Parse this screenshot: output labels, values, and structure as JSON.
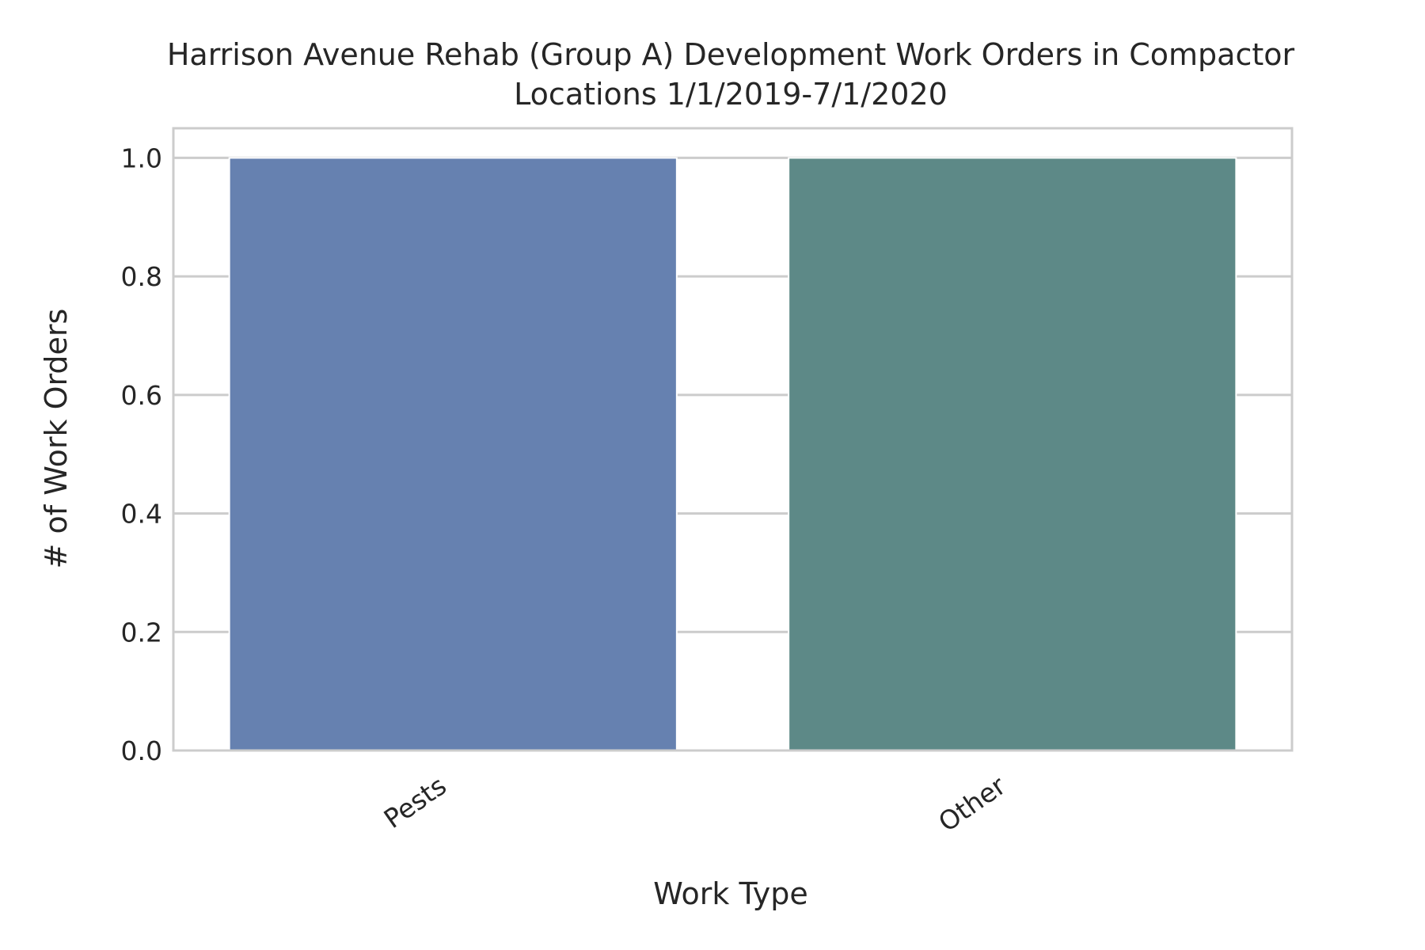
{
  "chart_data": {
    "type": "bar",
    "title_lines": [
      "Harrison Avenue Rehab (Group A) Development Work Orders in Compactor",
      "Locations 1/1/2019-7/1/2020"
    ],
    "xlabel": "Work Type",
    "ylabel": "# of Work Orders",
    "categories": [
      "Pests",
      "Other"
    ],
    "values": [
      1,
      1
    ],
    "colors": [
      "#6681b0",
      "#5d8987"
    ],
    "ylim": [
      0,
      1.05
    ],
    "yticks": [
      0.0,
      0.2,
      0.4,
      0.6,
      0.8,
      1.0
    ],
    "ytick_labels": [
      "0.0",
      "0.2",
      "0.4",
      "0.6",
      "0.8",
      "1.0"
    ],
    "grid": true,
    "grid_color": "#cccccc",
    "frame_color": "#cccccc",
    "text_color": "#262626"
  }
}
